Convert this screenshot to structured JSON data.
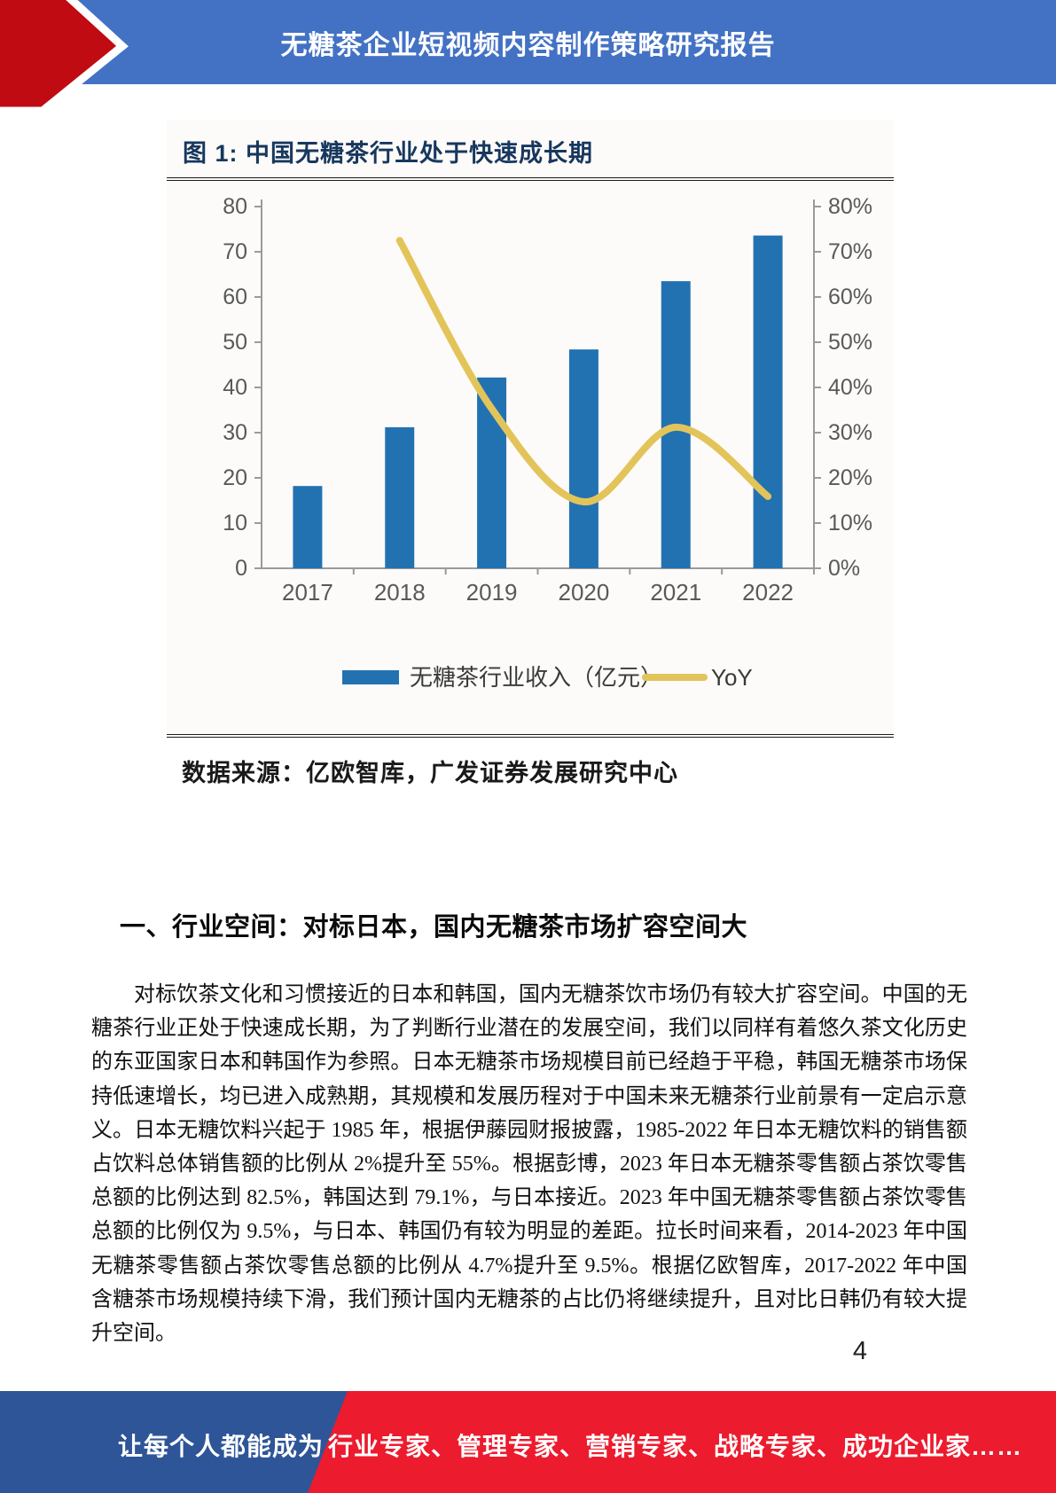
{
  "header": {
    "title": "无糖茶企业短视频内容制作策略研究报告"
  },
  "figure": {
    "title": "图 1: 中国无糖茶行业处于快速成长期",
    "source": "数据来源：亿欧智库，广发证券发展研究中心"
  },
  "chart_data": {
    "type": "bar",
    "title": "图 1: 中国无糖茶行业处于快速成长期",
    "categories": [
      "2017",
      "2018",
      "2019",
      "2020",
      "2021",
      "2022"
    ],
    "series": [
      {
        "name": "无糖茶行业收入（亿元）",
        "type": "bar",
        "axis": "left",
        "color": "#2272B2",
        "values": [
          18.2,
          31.2,
          42.2,
          48.4,
          63.5,
          73.6
        ]
      },
      {
        "name": "YoY",
        "type": "line",
        "axis": "right",
        "color": "#E3C45A",
        "values": [
          null,
          72.5,
          35.3,
          14.7,
          31.2,
          15.9
        ]
      }
    ],
    "left_axis": {
      "min": 0,
      "max": 80,
      "step": 10,
      "suffix": ""
    },
    "right_axis": {
      "min": 0,
      "max": 80,
      "step": 10,
      "suffix": "%"
    },
    "grid": false,
    "legend_position": "bottom",
    "axis_text_color": "#595959",
    "axis_line_color": "#9a9a9a"
  },
  "section": {
    "heading": "一、行业空间：对标日本，国内无糖茶市场扩容空间大",
    "paragraph": "对标饮茶文化和习惯接近的日本和韩国，国内无糖茶饮市场仍有较大扩容空间。中国的无糖茶行业正处于快速成长期，为了判断行业潜在的发展空间，我们以同样有着悠久茶文化历史的东亚国家日本和韩国作为参照。日本无糖茶市场规模目前已经趋于平稳，韩国无糖茶市场保持低速增长，均已进入成熟期，其规模和发展历程对于中国未来无糖茶行业前景有一定启示意义。日本无糖饮料兴起于 1985 年，根据伊藤园财报披露，1985-2022 年日本无糖饮料的销售额占饮料总体销售额的比例从 2%提升至 55%。根据彭博，2023 年日本无糖茶零售额占茶饮零售总额的比例达到 82.5%，韩国达到 79.1%，与日本接近。2023 年中国无糖茶零售额占茶饮零售总额的比例仅为 9.5%，与日本、韩国仍有较为明显的差距。拉长时间来看，2014-2023 年中国无糖茶零售额占茶饮零售总额的比例从 4.7%提升至 9.5%。根据亿欧智库，2017-2022 年中国含糖茶市场规模持续下滑，我们预计国内无糖茶的占比仍将继续提升，且对比日韩仍有较大提升空间。"
  },
  "page_number": "4",
  "footer": {
    "left_text": "让每个人都能成为",
    "right_text": "行业专家、管理专家、营销专家、战略专家、成功企业家……"
  },
  "colors": {
    "header_blue": "#4372C4",
    "header_arrow_red": "#C00B13",
    "bar_blue": "#2272B2",
    "line_yellow": "#E3C45A",
    "footer_blue": "#2E5597",
    "footer_red": "#EC1B2E"
  }
}
